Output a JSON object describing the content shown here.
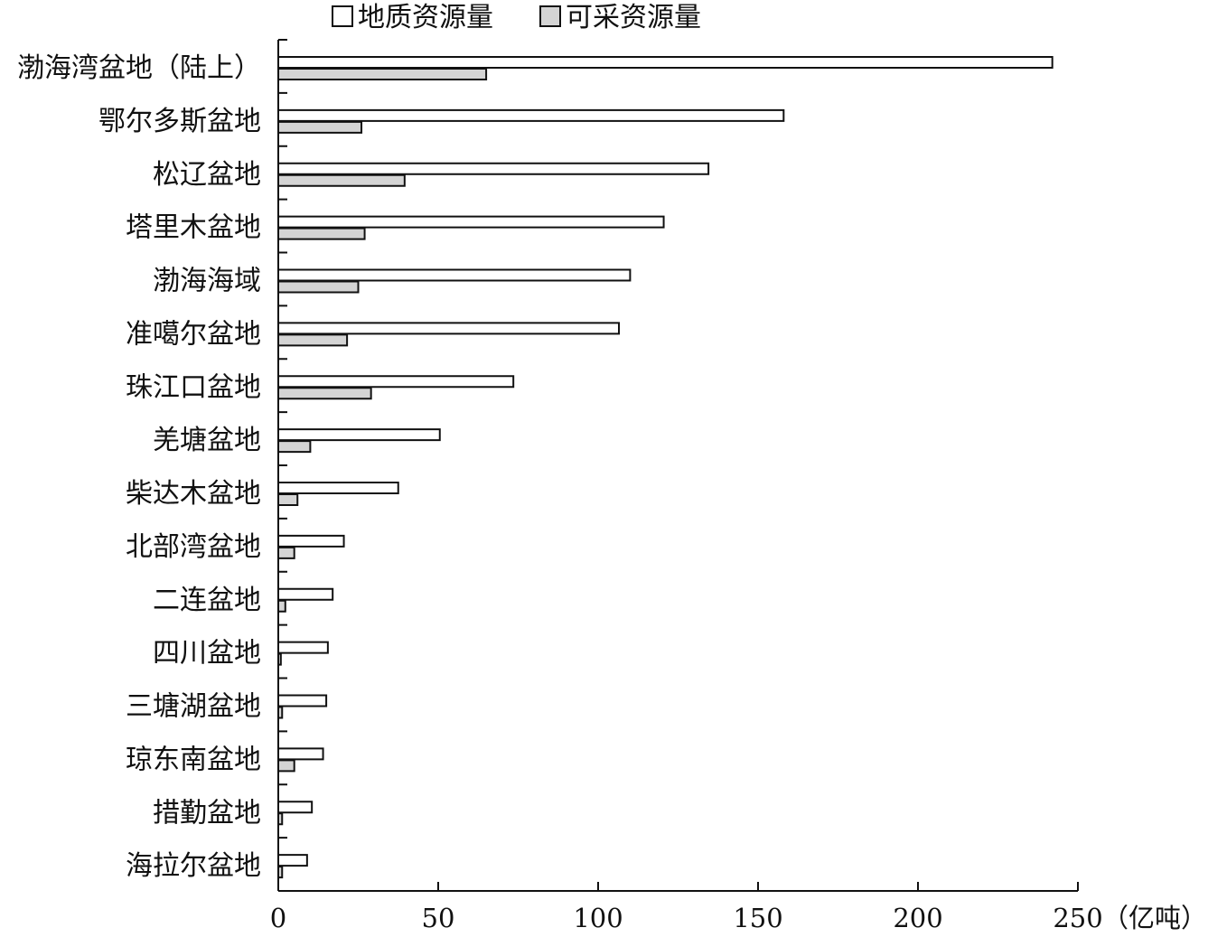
{
  "chart_data": {
    "type": "bar",
    "orientation": "horizontal",
    "categories": [
      "渤海湾盆地（陆上）",
      "鄂尔多斯盆地",
      "松辽盆地",
      "塔里木盆地",
      "渤海海域",
      "准噶尔盆地",
      "珠江口盆地",
      "羌塘盆地",
      "柴达木盆地",
      "北部湾盆地",
      "二连盆地",
      "四川盆地",
      "三塘湖盆地",
      "琼东南盆地",
      "措勤盆地",
      "海拉尔盆地"
    ],
    "series": [
      {
        "name": "地质资源量",
        "color": "#ffffff",
        "values": [
          242,
          158,
          134.5,
          120.5,
          110,
          106.5,
          73.5,
          50.5,
          37.5,
          20.5,
          17,
          15.5,
          15,
          14,
          10.5,
          9
        ]
      },
      {
        "name": "可采资源量",
        "color": "#d4d4d4",
        "values": [
          65,
          26,
          39.5,
          27,
          25,
          21.5,
          29,
          10,
          6,
          5,
          2.2,
          0.8,
          1.2,
          5,
          1.2,
          1.2
        ]
      }
    ],
    "xlim": [
      0,
      250
    ],
    "xticks": [
      0,
      50,
      100,
      150,
      200,
      250
    ],
    "unit": "（亿吨）",
    "grid": false,
    "legend_position": "top"
  }
}
